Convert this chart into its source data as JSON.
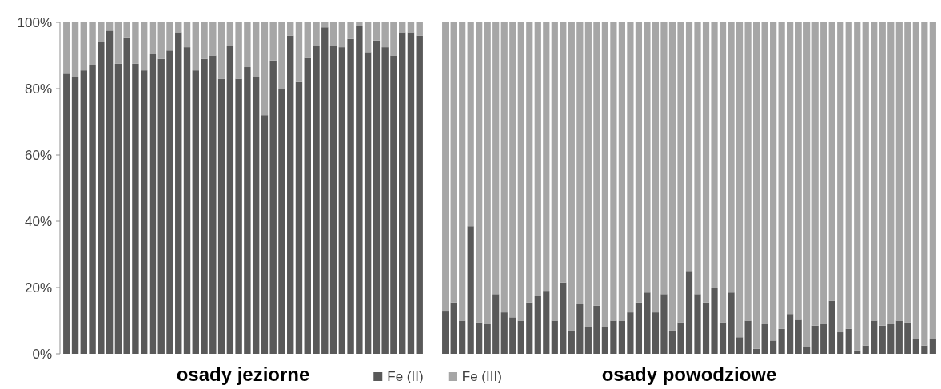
{
  "chart_data": [
    {
      "type": "bar",
      "stacked": true,
      "xlabel": "osady jeziorne",
      "legend": "bottom right",
      "ylim": [
        0,
        100
      ],
      "yticks": [
        {
          "value": 0,
          "label": "0%"
        },
        {
          "value": 20,
          "label": "20%"
        },
        {
          "value": 40,
          "label": "40%"
        },
        {
          "value": 60,
          "label": "60%"
        },
        {
          "value": 80,
          "label": "80%"
        },
        {
          "value": 100,
          "label": "100%"
        }
      ],
      "categories": [
        null,
        null,
        null,
        null,
        null,
        null,
        null,
        null,
        null,
        null,
        null,
        null,
        null,
        null,
        null,
        null,
        null,
        null,
        null,
        null,
        null,
        null,
        null,
        null,
        null,
        null,
        null,
        null,
        null,
        null,
        null,
        null,
        null,
        null,
        null,
        null,
        null,
        null,
        null,
        null,
        null,
        null
      ],
      "series": [
        {
          "name": "Fe (II)",
          "color": "#595959",
          "values": [
            84.5,
            83.5,
            85.5,
            87,
            94,
            97.5,
            87.5,
            95.5,
            87.5,
            85.5,
            90.5,
            89,
            91.5,
            97,
            92.5,
            85.5,
            89,
            90,
            83,
            93,
            83,
            86.5,
            83.5,
            72,
            88.5,
            80,
            96,
            82,
            89.5,
            93,
            98.5,
            93,
            92.5,
            95,
            99,
            91,
            94.5,
            92.5,
            90,
            97,
            97,
            96
          ]
        },
        {
          "name": "Fe (III)",
          "color": "#a6a6a6",
          "values": [
            15.5,
            16.5,
            14.5,
            13,
            6,
            2.5,
            12.5,
            4.5,
            12.5,
            14.5,
            9.5,
            11,
            8.5,
            3,
            7.5,
            14.5,
            11,
            10,
            17,
            7,
            17,
            13.5,
            16.5,
            28,
            11.5,
            20,
            4,
            18,
            10.5,
            7,
            1.5,
            7,
            7.5,
            5,
            1,
            9,
            5.5,
            7.5,
            10,
            3,
            3,
            4
          ]
        }
      ]
    },
    {
      "type": "bar",
      "stacked": true,
      "xlabel": "osady powodziowe",
      "tick_labels": false,
      "ylim": [
        0,
        100
      ],
      "categories": [
        null,
        null,
        null,
        null,
        null,
        null,
        null,
        null,
        null,
        null,
        null,
        null,
        null,
        null,
        null,
        null,
        null,
        null,
        null,
        null,
        null,
        null,
        null,
        null,
        null,
        null,
        null,
        null,
        null,
        null,
        null,
        null,
        null,
        null,
        null,
        null,
        null,
        null,
        null,
        null,
        null,
        null,
        null,
        null,
        null,
        null,
        null,
        null,
        null,
        null,
        null,
        null,
        null,
        null,
        null,
        null,
        null,
        null,
        null
      ],
      "series": [
        {
          "color": "#595959",
          "values": [
            13,
            15.5,
            10,
            38.5,
            9.5,
            9,
            18,
            12.5,
            11,
            10,
            15.5,
            17.5,
            19,
            10,
            21.5,
            7,
            15,
            8,
            14.5,
            8,
            10,
            10,
            12.5,
            15.5,
            18.5,
            12.5,
            18,
            7,
            9.5,
            25,
            18,
            15.5,
            20,
            9.5,
            18.5,
            5,
            10,
            1.5,
            9,
            4,
            7.5,
            12,
            10.5,
            2,
            8.5,
            9,
            16,
            6.5,
            7.5,
            1,
            2.5,
            10,
            8.5,
            9,
            10,
            9.5,
            4.5,
            2.5,
            4.5
          ]
        },
        {
          "color": "#a6a6a6",
          "values": [
            87,
            84.5,
            90,
            61.5,
            90.5,
            91,
            82,
            87.5,
            89,
            90,
            84.5,
            82.5,
            81,
            90,
            78.5,
            93,
            85,
            92,
            85.5,
            92,
            90,
            90,
            87.5,
            84.5,
            81.5,
            87.5,
            82,
            93,
            90.5,
            75,
            82,
            84.5,
            80,
            90.5,
            81.5,
            95,
            90,
            98.5,
            91,
            96,
            92.5,
            88,
            89.5,
            98,
            91.5,
            91,
            84,
            93.5,
            92.5,
            99,
            97.5,
            90,
            91.5,
            91,
            90,
            90.5,
            95.5,
            97.5,
            95.5
          ]
        }
      ]
    }
  ]
}
